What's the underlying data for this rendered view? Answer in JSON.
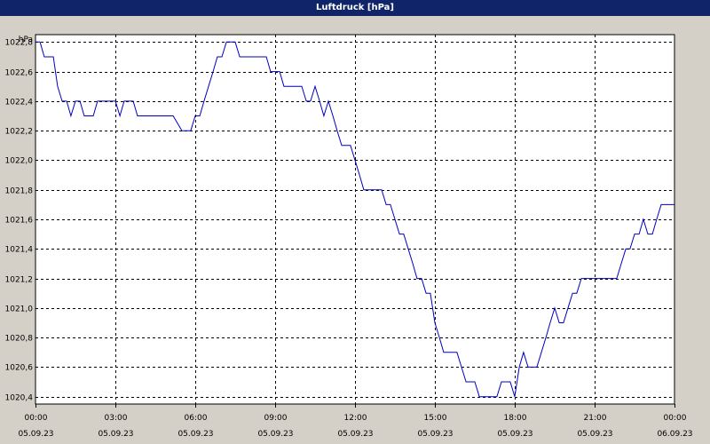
{
  "window": {
    "title": "Luftdruck [hPa]"
  },
  "colors": {
    "background": "#d4d0c8",
    "plot_background": "#ffffff",
    "title_bar": "#10246a",
    "series": "#0000c0",
    "grid": "#000000"
  },
  "chart_data": {
    "type": "line",
    "title": "Luftdruck [hPa]",
    "ylabel": "hPa",
    "xlabel": "",
    "grid": true,
    "legend": "none",
    "xlim": [
      0,
      24
    ],
    "ylim": [
      1020.35,
      1022.85
    ],
    "y_ticks": [
      {
        "value": 1020.4,
        "label": "1020,4"
      },
      {
        "value": 1020.6,
        "label": "1020,6"
      },
      {
        "value": 1020.8,
        "label": "1020,8"
      },
      {
        "value": 1021.0,
        "label": "1021,0"
      },
      {
        "value": 1021.2,
        "label": "1021,2"
      },
      {
        "value": 1021.4,
        "label": "1021,4"
      },
      {
        "value": 1021.6,
        "label": "1021,6"
      },
      {
        "value": 1021.8,
        "label": "1021,8"
      },
      {
        "value": 1022.0,
        "label": "1022,0"
      },
      {
        "value": 1022.2,
        "label": "1022,2"
      },
      {
        "value": 1022.4,
        "label": "1022,4"
      },
      {
        "value": 1022.6,
        "label": "1022,6"
      },
      {
        "value": 1022.8,
        "label": "1022,8"
      }
    ],
    "x_ticks": [
      {
        "value": 0,
        "time": "00:00",
        "date": "05.09.23"
      },
      {
        "value": 3,
        "time": "03:00",
        "date": "05.09.23"
      },
      {
        "value": 6,
        "time": "06:00",
        "date": "05.09.23"
      },
      {
        "value": 9,
        "time": "09:00",
        "date": "05.09.23"
      },
      {
        "value": 12,
        "time": "12:00",
        "date": "05.09.23"
      },
      {
        "value": 15,
        "time": "15:00",
        "date": "05.09.23"
      },
      {
        "value": 18,
        "time": "18:00",
        "date": "05.09.23"
      },
      {
        "value": 21,
        "time": "21:00",
        "date": "05.09.23"
      },
      {
        "value": 24,
        "time": "00:00",
        "date": "06.09.23"
      }
    ],
    "series": [
      {
        "points": [
          [
            0.0,
            1022.8
          ],
          [
            0.17,
            1022.8
          ],
          [
            0.33,
            1022.7
          ],
          [
            0.67,
            1022.7
          ],
          [
            0.83,
            1022.5
          ],
          [
            1.0,
            1022.4
          ],
          [
            1.17,
            1022.4
          ],
          [
            1.33,
            1022.3
          ],
          [
            1.5,
            1022.4
          ],
          [
            1.67,
            1022.4
          ],
          [
            1.83,
            1022.3
          ],
          [
            2.17,
            1022.3
          ],
          [
            2.33,
            1022.4
          ],
          [
            2.83,
            1022.4
          ],
          [
            3.0,
            1022.4
          ],
          [
            3.17,
            1022.3
          ],
          [
            3.33,
            1022.4
          ],
          [
            3.67,
            1022.4
          ],
          [
            3.83,
            1022.3
          ],
          [
            4.67,
            1022.3
          ],
          [
            5.0,
            1022.3
          ],
          [
            5.17,
            1022.3
          ],
          [
            5.5,
            1022.2
          ],
          [
            5.83,
            1022.2
          ],
          [
            6.0,
            1022.3
          ],
          [
            6.17,
            1022.3
          ],
          [
            6.33,
            1022.4
          ],
          [
            6.5,
            1022.5
          ],
          [
            6.67,
            1022.6
          ],
          [
            6.83,
            1022.7
          ],
          [
            7.0,
            1022.7
          ],
          [
            7.17,
            1022.8
          ],
          [
            7.5,
            1022.8
          ],
          [
            7.67,
            1022.7
          ],
          [
            8.0,
            1022.7
          ],
          [
            8.33,
            1022.7
          ],
          [
            8.67,
            1022.7
          ],
          [
            8.83,
            1022.6
          ],
          [
            9.17,
            1022.6
          ],
          [
            9.33,
            1022.5
          ],
          [
            10.0,
            1022.5
          ],
          [
            10.17,
            1022.4
          ],
          [
            10.33,
            1022.4
          ],
          [
            10.5,
            1022.5
          ],
          [
            10.67,
            1022.4
          ],
          [
            10.83,
            1022.3
          ],
          [
            11.0,
            1022.4
          ],
          [
            11.17,
            1022.3
          ],
          [
            11.33,
            1022.2
          ],
          [
            11.5,
            1022.1
          ],
          [
            11.83,
            1022.1
          ],
          [
            12.0,
            1022.0
          ],
          [
            12.17,
            1021.9
          ],
          [
            12.33,
            1021.8
          ],
          [
            12.67,
            1021.8
          ],
          [
            13.0,
            1021.8
          ],
          [
            13.17,
            1021.7
          ],
          [
            13.33,
            1021.7
          ],
          [
            13.5,
            1021.6
          ],
          [
            13.67,
            1021.5
          ],
          [
            13.83,
            1021.5
          ],
          [
            14.0,
            1021.4
          ],
          [
            14.17,
            1021.3
          ],
          [
            14.33,
            1021.2
          ],
          [
            14.5,
            1021.2
          ],
          [
            14.67,
            1021.1
          ],
          [
            14.83,
            1021.1
          ],
          [
            15.0,
            1020.9
          ],
          [
            15.17,
            1020.8
          ],
          [
            15.33,
            1020.7
          ],
          [
            15.67,
            1020.7
          ],
          [
            15.83,
            1020.7
          ],
          [
            16.0,
            1020.6
          ],
          [
            16.17,
            1020.5
          ],
          [
            16.5,
            1020.5
          ],
          [
            16.67,
            1020.4
          ],
          [
            16.83,
            1020.4
          ],
          [
            17.33,
            1020.4
          ],
          [
            17.5,
            1020.5
          ],
          [
            17.83,
            1020.5
          ],
          [
            18.0,
            1020.4
          ],
          [
            18.17,
            1020.6
          ],
          [
            18.33,
            1020.7
          ],
          [
            18.5,
            1020.6
          ],
          [
            18.83,
            1020.6
          ],
          [
            19.0,
            1020.7
          ],
          [
            19.17,
            1020.8
          ],
          [
            19.33,
            1020.9
          ],
          [
            19.5,
            1021.0
          ],
          [
            19.67,
            1020.9
          ],
          [
            19.83,
            1020.9
          ],
          [
            20.0,
            1021.0
          ],
          [
            20.17,
            1021.1
          ],
          [
            20.33,
            1021.1
          ],
          [
            20.5,
            1021.2
          ],
          [
            20.67,
            1021.2
          ],
          [
            21.0,
            1021.2
          ],
          [
            21.5,
            1021.2
          ],
          [
            21.83,
            1021.2
          ],
          [
            22.0,
            1021.3
          ],
          [
            22.17,
            1021.4
          ],
          [
            22.33,
            1021.4
          ],
          [
            22.5,
            1021.5
          ],
          [
            22.67,
            1021.5
          ],
          [
            22.83,
            1021.6
          ],
          [
            23.0,
            1021.5
          ],
          [
            23.17,
            1021.5
          ],
          [
            23.33,
            1021.6
          ],
          [
            23.5,
            1021.7
          ],
          [
            23.67,
            1021.7
          ],
          [
            24.0,
            1021.7
          ]
        ]
      }
    ]
  }
}
